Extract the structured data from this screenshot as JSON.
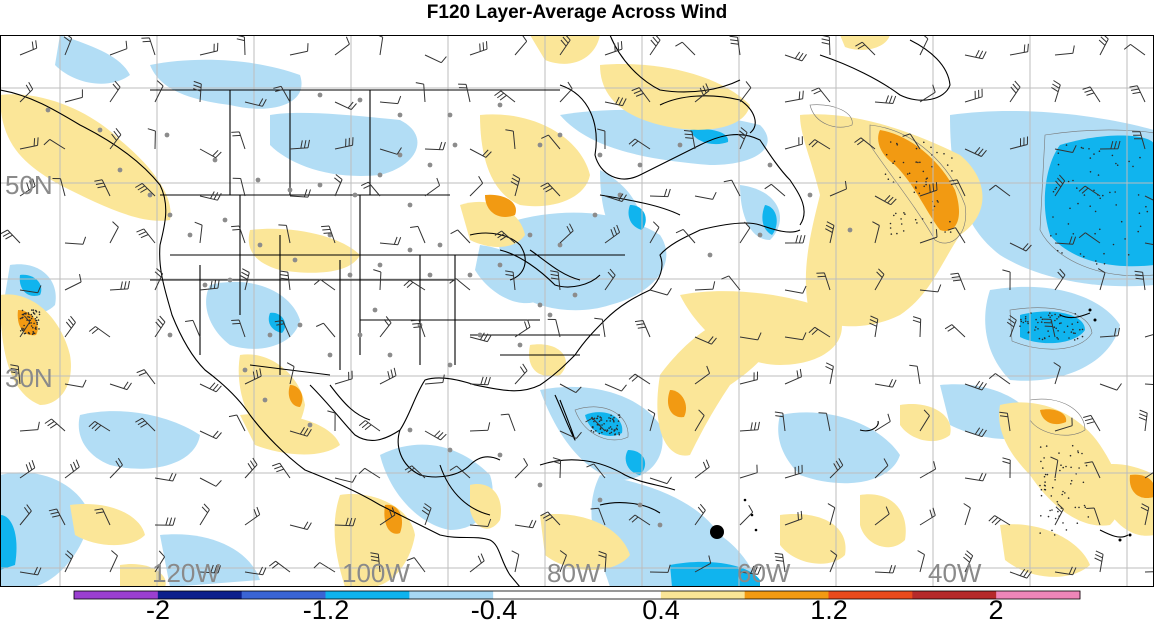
{
  "title": "F120 Layer-Average Across Wind",
  "map": {
    "lat_labels": [
      "50N",
      "30N"
    ],
    "lon_labels": [
      "120W",
      "100W",
      "80W",
      "60W",
      "40W"
    ],
    "colors": {
      "light_blue": "#b2ddf5",
      "blue": "#10b4ee",
      "light_yellow": "#fbe698",
      "orange": "#f29a12",
      "grid": "#bdbdbd",
      "station": "#8c8c8c"
    }
  },
  "colorbar": {
    "tick_labels": [
      "-2",
      "-1.2",
      "-0.4",
      "0.4",
      "1.2",
      "2"
    ],
    "bins": [
      {
        "color": "#9a3fd0",
        "range": "< -2"
      },
      {
        "color": "#0c1f8c",
        "range": "-2 to -1.6"
      },
      {
        "color": "#3a64d4",
        "range": "-1.6 to -1.2"
      },
      {
        "color": "#0eb3ee",
        "range": "-1.2 to -0.8"
      },
      {
        "color": "#a7d7f3",
        "range": "-0.8 to -0.4"
      },
      {
        "color": "#ffffff",
        "range": "-0.4 to 0"
      },
      {
        "color": "#ffffff",
        "range": "0 to 0.4"
      },
      {
        "color": "#fae596",
        "range": "0.4 to 0.8"
      },
      {
        "color": "#f29a12",
        "range": "0.8 to 1.2"
      },
      {
        "color": "#ea4a1b",
        "range": "1.2 to 1.6"
      },
      {
        "color": "#b52a2a",
        "range": "1.6 to 2"
      },
      {
        "color": "#ee86b8",
        "range": "> 2"
      }
    ]
  }
}
